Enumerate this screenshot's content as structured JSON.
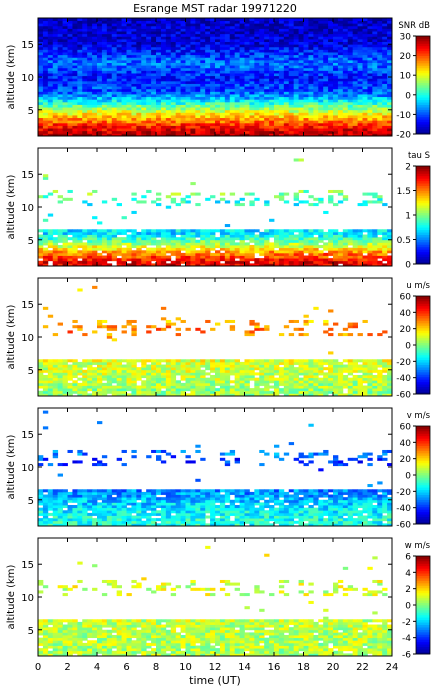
{
  "title": "Esrange MST radar 19971220",
  "chart_data": {
    "type": "heatmap",
    "x": {
      "label": "time (UT)",
      "range": [
        0,
        24
      ],
      "ticks": [
        0,
        2,
        4,
        6,
        8,
        10,
        12,
        14,
        16,
        18,
        20,
        22,
        24
      ]
    },
    "panels": [
      {
        "id": "snr",
        "ylabel": "altitude (km)",
        "yrange": [
          1,
          19
        ],
        "yticks": [
          5,
          10,
          15
        ],
        "colorbar_label": "SNR dB",
        "crange": [
          -20,
          30
        ],
        "cticks": [
          -20,
          -10,
          0,
          10,
          20,
          30
        ],
        "profile": [
          {
            "alt": 1,
            "value": 28
          },
          {
            "alt": 2,
            "value": 25
          },
          {
            "alt": 3,
            "value": 20
          },
          {
            "alt": 4,
            "value": 14
          },
          {
            "alt": 5,
            "value": 8
          },
          {
            "alt": 6,
            "value": 1
          },
          {
            "alt": 7,
            "value": -6
          },
          {
            "alt": 8,
            "value": -10
          },
          {
            "alt": 10,
            "value": -13
          },
          {
            "alt": 12,
            "value": -8
          },
          {
            "alt": 13,
            "value": -10
          },
          {
            "alt": 15,
            "value": -16
          },
          {
            "alt": 19,
            "value": -17
          }
        ]
      },
      {
        "id": "tau",
        "ylabel": "altitude (km)",
        "yrange": [
          1,
          19
        ],
        "yticks": [
          5,
          10,
          15
        ],
        "colorbar_label": "tau S",
        "crange": [
          0,
          2
        ],
        "cticks": [
          0,
          0.5,
          1,
          1.5,
          2
        ],
        "profile": [
          {
            "alt": 1.5,
            "value": 1.8
          },
          {
            "alt": 3,
            "value": 1.5
          },
          {
            "alt": 5,
            "value": 0.9
          },
          {
            "alt": 6,
            "value": 0.7
          },
          {
            "alt": 11,
            "value": 0.8
          },
          {
            "alt": 12,
            "value": 1.0
          }
        ]
      },
      {
        "id": "u",
        "ylabel": "altitude (km)",
        "yrange": [
          1,
          19
        ],
        "yticks": [
          5,
          10,
          15
        ],
        "colorbar_label": "u m/s",
        "crange": [
          -60,
          60
        ],
        "cticks": [
          -60,
          -40,
          -20,
          0,
          20,
          40,
          60
        ],
        "profile": [
          {
            "alt": 2,
            "value": 3
          },
          {
            "alt": 4,
            "value": 8
          },
          {
            "alt": 6,
            "value": 10
          },
          {
            "alt": 11,
            "value": 32
          },
          {
            "alt": 12,
            "value": 25
          }
        ]
      },
      {
        "id": "v",
        "ylabel": "altitude (km)",
        "yrange": [
          1,
          19
        ],
        "yticks": [
          5,
          10,
          15
        ],
        "colorbar_label": "v m/s",
        "crange": [
          -60,
          60
        ],
        "cticks": [
          -60,
          -40,
          -20,
          0,
          20,
          40,
          60
        ],
        "profile": [
          {
            "alt": 2,
            "value": -12
          },
          {
            "alt": 4,
            "value": -18
          },
          {
            "alt": 6,
            "value": -28
          },
          {
            "alt": 11,
            "value": -40
          },
          {
            "alt": 12,
            "value": -30
          }
        ]
      },
      {
        "id": "w",
        "ylabel": "altitude (km)",
        "yrange": [
          1,
          19
        ],
        "yticks": [
          5,
          10,
          15
        ],
        "colorbar_label": "w m/s",
        "crange": [
          -6,
          6
        ],
        "cticks": [
          -6,
          -4,
          -2,
          0,
          2,
          4,
          6
        ],
        "profile": [
          {
            "alt": 2,
            "value": 0.5
          },
          {
            "alt": 5,
            "value": 0.7
          },
          {
            "alt": 12,
            "value": 1.0
          }
        ]
      }
    ],
    "grid": false,
    "colormap": [
      "#00008f",
      "#0000ff",
      "#0080ff",
      "#00ffff",
      "#80ff80",
      "#ffff00",
      "#ff8000",
      "#ff0000",
      "#800000"
    ]
  }
}
